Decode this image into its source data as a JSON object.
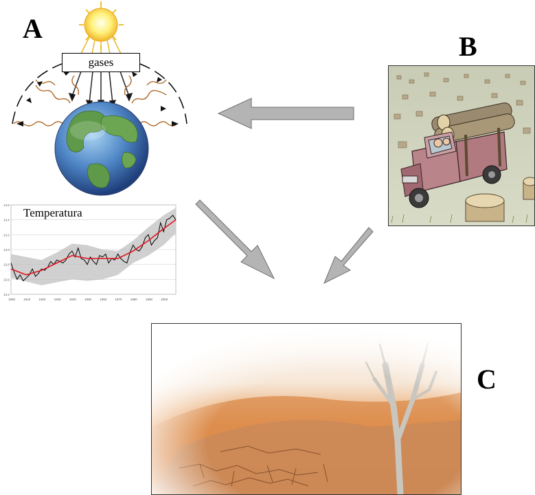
{
  "labels": {
    "a": "A",
    "b": "B",
    "c": "C"
  },
  "panel_a": {
    "gases_label": "gases",
    "chart_title": "Temperatura",
    "y_ticks": [
      "14.6",
      "14.4",
      "14.2",
      "14.0",
      "13.8",
      "13.6",
      "13.4"
    ],
    "x_ticks": [
      "1900",
      "1910",
      "1920",
      "1930",
      "1940",
      "1950",
      "1960",
      "1970",
      "1980",
      "1990",
      "2000"
    ]
  },
  "colors": {
    "arrow_fill": "#b4b4b4",
    "arrow_stroke": "#6e6e6e",
    "temp_line": "#000000",
    "temp_trend": "#e0121e",
    "band": "#c8c8c8"
  },
  "chart_data": {
    "type": "line",
    "title": "Temperatura",
    "xlim": [
      1900,
      2008
    ],
    "ylim": [
      13.4,
      14.6
    ],
    "series": [
      {
        "values": [
          [
            1900,
            13.82
          ],
          [
            1902,
            13.7
          ],
          [
            1904,
            13.6
          ],
          [
            1906,
            13.66
          ],
          [
            1908,
            13.58
          ],
          [
            1910,
            13.62
          ],
          [
            1912,
            13.66
          ],
          [
            1914,
            13.74
          ],
          [
            1916,
            13.64
          ],
          [
            1918,
            13.68
          ],
          [
            1920,
            13.74
          ],
          [
            1922,
            13.72
          ],
          [
            1924,
            13.76
          ],
          [
            1926,
            13.84
          ],
          [
            1928,
            13.8
          ],
          [
            1930,
            13.86
          ],
          [
            1932,
            13.84
          ],
          [
            1934,
            13.82
          ],
          [
            1936,
            13.86
          ],
          [
            1938,
            13.94
          ],
          [
            1940,
            13.98
          ],
          [
            1942,
            13.9
          ],
          [
            1944,
            14.02
          ],
          [
            1946,
            13.88
          ],
          [
            1948,
            13.86
          ],
          [
            1950,
            13.8
          ],
          [
            1952,
            13.9
          ],
          [
            1954,
            13.84
          ],
          [
            1956,
            13.8
          ],
          [
            1958,
            13.92
          ],
          [
            1960,
            13.9
          ],
          [
            1962,
            13.94
          ],
          [
            1964,
            13.82
          ],
          [
            1966,
            13.88
          ],
          [
            1968,
            13.86
          ],
          [
            1970,
            13.94
          ],
          [
            1972,
            13.88
          ],
          [
            1974,
            13.84
          ],
          [
            1976,
            13.82
          ],
          [
            1978,
            13.96
          ],
          [
            1980,
            14.06
          ],
          [
            1982,
            14.0
          ],
          [
            1984,
            13.98
          ],
          [
            1986,
            14.04
          ],
          [
            1988,
            14.16
          ],
          [
            1990,
            14.2
          ],
          [
            1992,
            14.06
          ],
          [
            1994,
            14.12
          ],
          [
            1996,
            14.16
          ],
          [
            1998,
            14.36
          ],
          [
            2000,
            14.24
          ],
          [
            2002,
            14.4
          ],
          [
            2004,
            14.42
          ],
          [
            2006,
            14.46
          ],
          [
            2008,
            14.4
          ]
        ]
      },
      {
        "values": [
          [
            1900,
            13.74
          ],
          [
            1910,
            13.66
          ],
          [
            1920,
            13.72
          ],
          [
            1930,
            13.82
          ],
          [
            1940,
            13.92
          ],
          [
            1950,
            13.88
          ],
          [
            1960,
            13.88
          ],
          [
            1970,
            13.88
          ],
          [
            1980,
            13.98
          ],
          [
            1990,
            14.12
          ],
          [
            2000,
            14.28
          ],
          [
            2008,
            14.4
          ]
        ]
      }
    ]
  }
}
